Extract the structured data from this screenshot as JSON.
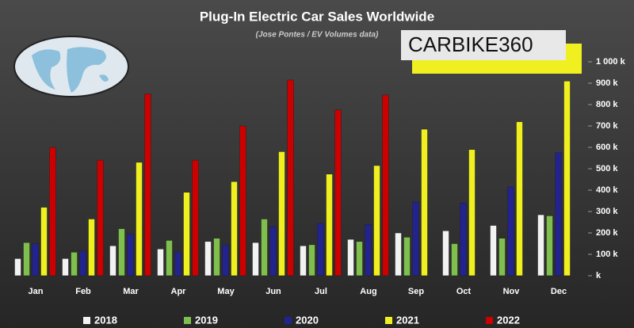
{
  "chart_data": {
    "type": "bar",
    "title": "Plug-In Electric Car Sales Worldwide",
    "subtitle": "(Jose Pontes / EV Volumes data)",
    "watermark": "CARBIKE360",
    "categories": [
      "Jan",
      "Feb",
      "Mar",
      "Apr",
      "May",
      "Jun",
      "Jul",
      "Aug",
      "Sep",
      "Oct",
      "Nov",
      "Dec"
    ],
    "series": [
      {
        "name": "2018",
        "color": "#f2f2f2",
        "values": [
          80,
          80,
          140,
          125,
          160,
          155,
          140,
          170,
          200,
          210,
          235,
          285
        ]
      },
      {
        "name": "2019",
        "color": "#7fbf4d",
        "values": [
          155,
          110,
          220,
          165,
          175,
          265,
          145,
          160,
          180,
          150,
          175,
          280
        ]
      },
      {
        "name": "2020",
        "color": "#23238f",
        "values": [
          150,
          115,
          195,
          110,
          145,
          230,
          245,
          240,
          345,
          340,
          415,
          575
        ]
      },
      {
        "name": "2021",
        "color": "#f0f020",
        "values": [
          320,
          265,
          530,
          390,
          440,
          580,
          475,
          515,
          685,
          590,
          720,
          910
        ]
      },
      {
        "name": "2022",
        "color": "#cc0000",
        "values": [
          600,
          540,
          850,
          540,
          700,
          915,
          775,
          845,
          null,
          null,
          null,
          null
        ]
      }
    ],
    "ylim": [
      0,
      1000
    ],
    "yticks": [
      {
        "value": 0,
        "label": "k"
      },
      {
        "value": 100,
        "label": "100 k"
      },
      {
        "value": 200,
        "label": "200 k"
      },
      {
        "value": 300,
        "label": "300 k"
      },
      {
        "value": 400,
        "label": "400 k"
      },
      {
        "value": 500,
        "label": "500 k"
      },
      {
        "value": 600,
        "label": "600 k"
      },
      {
        "value": 700,
        "label": "700 k"
      },
      {
        "value": 800,
        "label": "800 k"
      },
      {
        "value": 900,
        "label": "900 k"
      },
      {
        "value": 1000,
        "label": "1 000 k"
      }
    ],
    "grid": false
  }
}
